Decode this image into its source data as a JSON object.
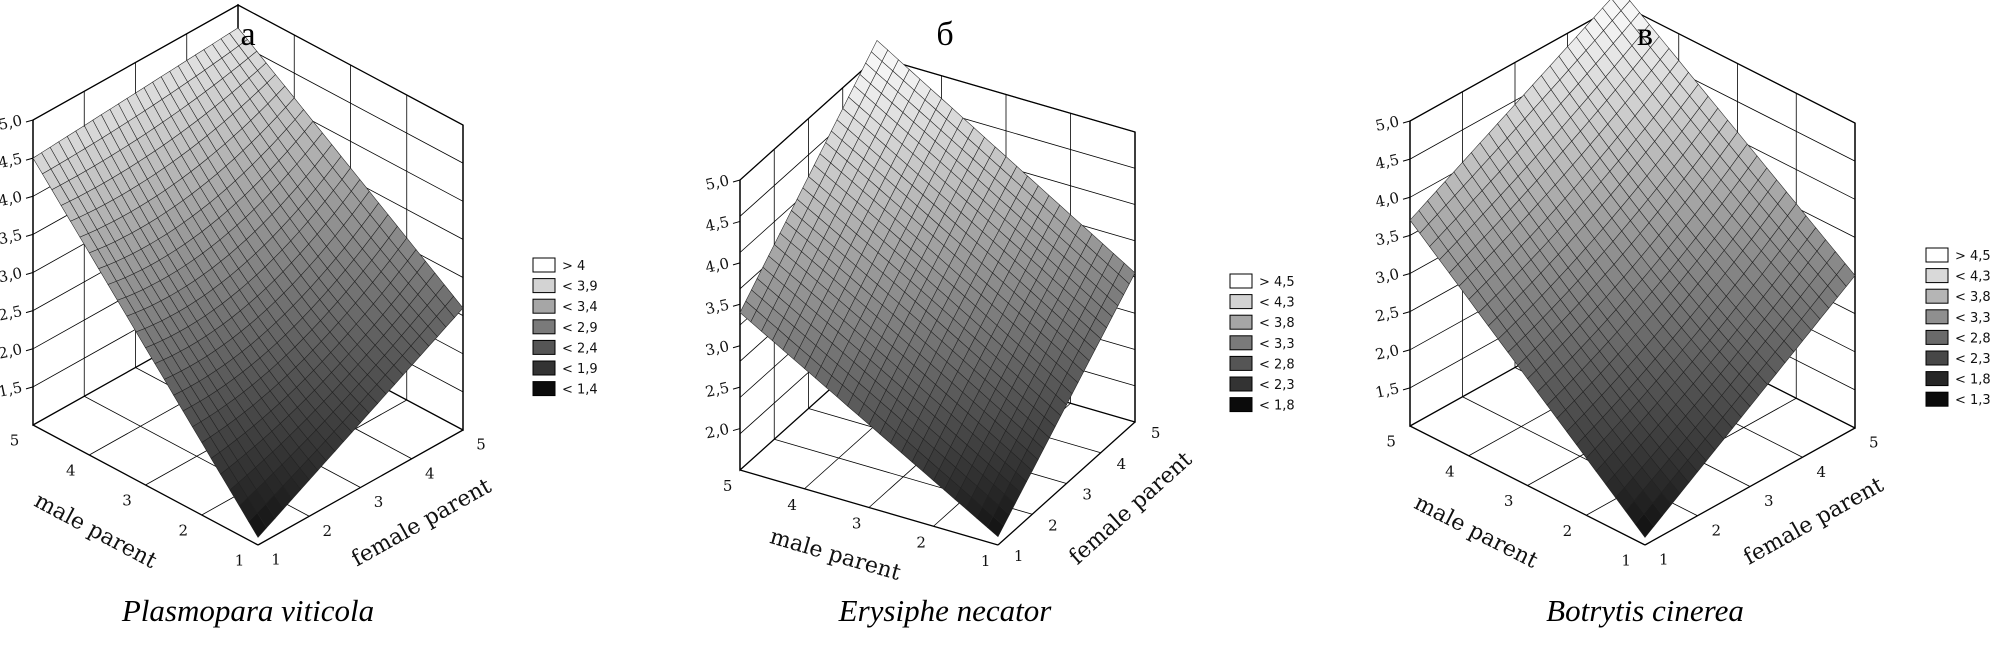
{
  "chart_data": [
    {
      "type": "surface3d",
      "panel_letter": "а",
      "title": "Plasmopara viticola",
      "xlabel": "male parent",
      "ylabel": "female parent",
      "xticks": [
        "5",
        "4",
        "3",
        "2",
        "1"
      ],
      "yticks": [
        "1",
        "2",
        "3",
        "4",
        "5"
      ],
      "zticks": [
        "1,5",
        "2,0",
        "2,5",
        "3,0",
        "3,5",
        "4,0",
        "4,5",
        "5,0"
      ],
      "zlim": [
        1.0,
        5.0
      ],
      "corner_values": {
        "front": 1.1,
        "left": 4.5,
        "right": 2.6,
        "back": 4.7
      },
      "center_value": 2.9,
      "legend": [
        "> 4",
        "< 3,9",
        "< 3,4",
        "< 2,9",
        "< 2,4",
        "< 1,9",
        "< 1,4"
      ],
      "legend_colors": [
        "#ffffff",
        "#d3d3d3",
        "#a6a6a6",
        "#7a7a7a",
        "#555555",
        "#333333",
        "#0b0b0b"
      ]
    },
    {
      "type": "surface3d",
      "panel_letter": "б",
      "title": "Erysiphe necator",
      "xlabel": "male parent",
      "ylabel": "female parent",
      "xticks": [
        "5",
        "4",
        "3",
        "2",
        "1"
      ],
      "yticks": [
        "1",
        "2",
        "3",
        "4",
        "5"
      ],
      "zticks": [
        "2,0",
        "2,5",
        "3,0",
        "3,5",
        "4,0",
        "4,5",
        "5,0"
      ],
      "zlim": [
        1.5,
        5.0
      ],
      "corner_values": {
        "front": 1.6,
        "left": 3.4,
        "right": 3.3,
        "back": 5.2
      },
      "center_value": 3.4,
      "legend": [
        "> 4,5",
        "< 4,3",
        "< 3,8",
        "< 3,3",
        "< 2,8",
        "< 2,3",
        "< 1,8"
      ],
      "legend_colors": [
        "#ffffff",
        "#d3d3d3",
        "#a6a6a6",
        "#7a7a7a",
        "#555555",
        "#333333",
        "#0b0b0b"
      ]
    },
    {
      "type": "surface3d",
      "panel_letter": "в",
      "title": "Botrytis cinerea",
      "xlabel": "male parent",
      "ylabel": "female parent",
      "xticks": [
        "5",
        "4",
        "3",
        "2",
        "1"
      ],
      "yticks": [
        "1",
        "2",
        "3",
        "4",
        "5"
      ],
      "zticks": [
        "1,5",
        "2,0",
        "2,5",
        "3,0",
        "3,5",
        "4,0",
        "4,5",
        "5,0"
      ],
      "zlim": [
        1.0,
        5.0
      ],
      "corner_values": {
        "front": 1.1,
        "left": 3.7,
        "right": 3.0,
        "back": 5.2
      },
      "center_value": 3.1,
      "legend": [
        "> 4,5",
        "< 4,3",
        "< 3,8",
        "< 3,3",
        "< 2,8",
        "< 2,3",
        "< 1,8",
        "< 1,3"
      ],
      "legend_colors": [
        "#ffffff",
        "#d9d9d9",
        "#b5b5b5",
        "#8f8f8f",
        "#6a6a6a",
        "#474747",
        "#262626",
        "#0b0b0b"
      ]
    }
  ]
}
